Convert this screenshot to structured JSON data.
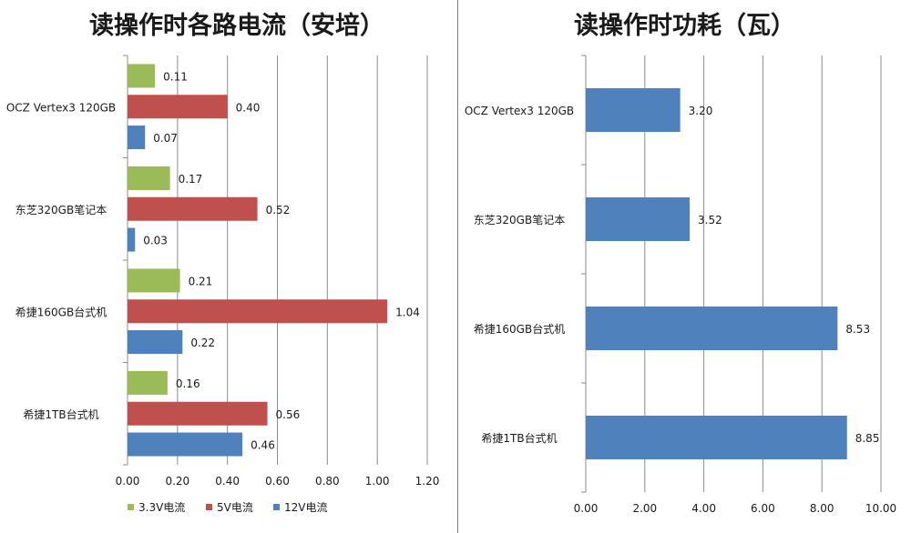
{
  "chart_data": [
    {
      "type": "bar",
      "orientation": "horizontal",
      "title": "读操作时各路电流（安培）",
      "categories": [
        "OCZ Vertex3 120GB",
        "东芝320GB笔记本",
        "希捷160GB台式机",
        "希捷1TB台式机"
      ],
      "series": [
        {
          "name": "3.3V电流",
          "color": "#9BBB59",
          "values": [
            0.11,
            0.17,
            0.21,
            0.16
          ],
          "labels": [
            "0.11",
            "0.17",
            "0.21",
            "0.16"
          ]
        },
        {
          "name": "5V电流",
          "color": "#C0504D",
          "values": [
            0.4,
            0.52,
            1.04,
            0.56
          ],
          "labels": [
            "0.40",
            "0.52",
            "1.04",
            "0.56"
          ]
        },
        {
          "name": "12V电流",
          "color": "#4F81BD",
          "values": [
            0.07,
            0.03,
            0.22,
            0.46
          ],
          "labels": [
            "0.07",
            "0.03",
            "0.22",
            "0.46"
          ]
        }
      ],
      "xlim": [
        0,
        1.2
      ],
      "ticks": [
        "0.00",
        "0.20",
        "0.40",
        "0.60",
        "0.80",
        "1.00",
        "1.20"
      ],
      "grid": true,
      "legend": "bottom"
    },
    {
      "type": "bar",
      "orientation": "horizontal",
      "title": "读操作时功耗（瓦）",
      "categories": [
        "OCZ Vertex3 120GB",
        "东芝320GB笔记本",
        "希捷160GB台式机",
        "希捷1TB台式机"
      ],
      "series": [
        {
          "color": "#4F81BD",
          "values": [
            3.2,
            3.52,
            8.53,
            8.85
          ],
          "labels": [
            "3.20",
            "3.52",
            "8.53",
            "8.85"
          ]
        }
      ],
      "xlim": [
        0,
        10
      ],
      "ticks": [
        "0.00",
        "2.00",
        "4.00",
        "6.00",
        "8.00",
        "10.00"
      ],
      "grid": true,
      "legend": "none"
    }
  ]
}
